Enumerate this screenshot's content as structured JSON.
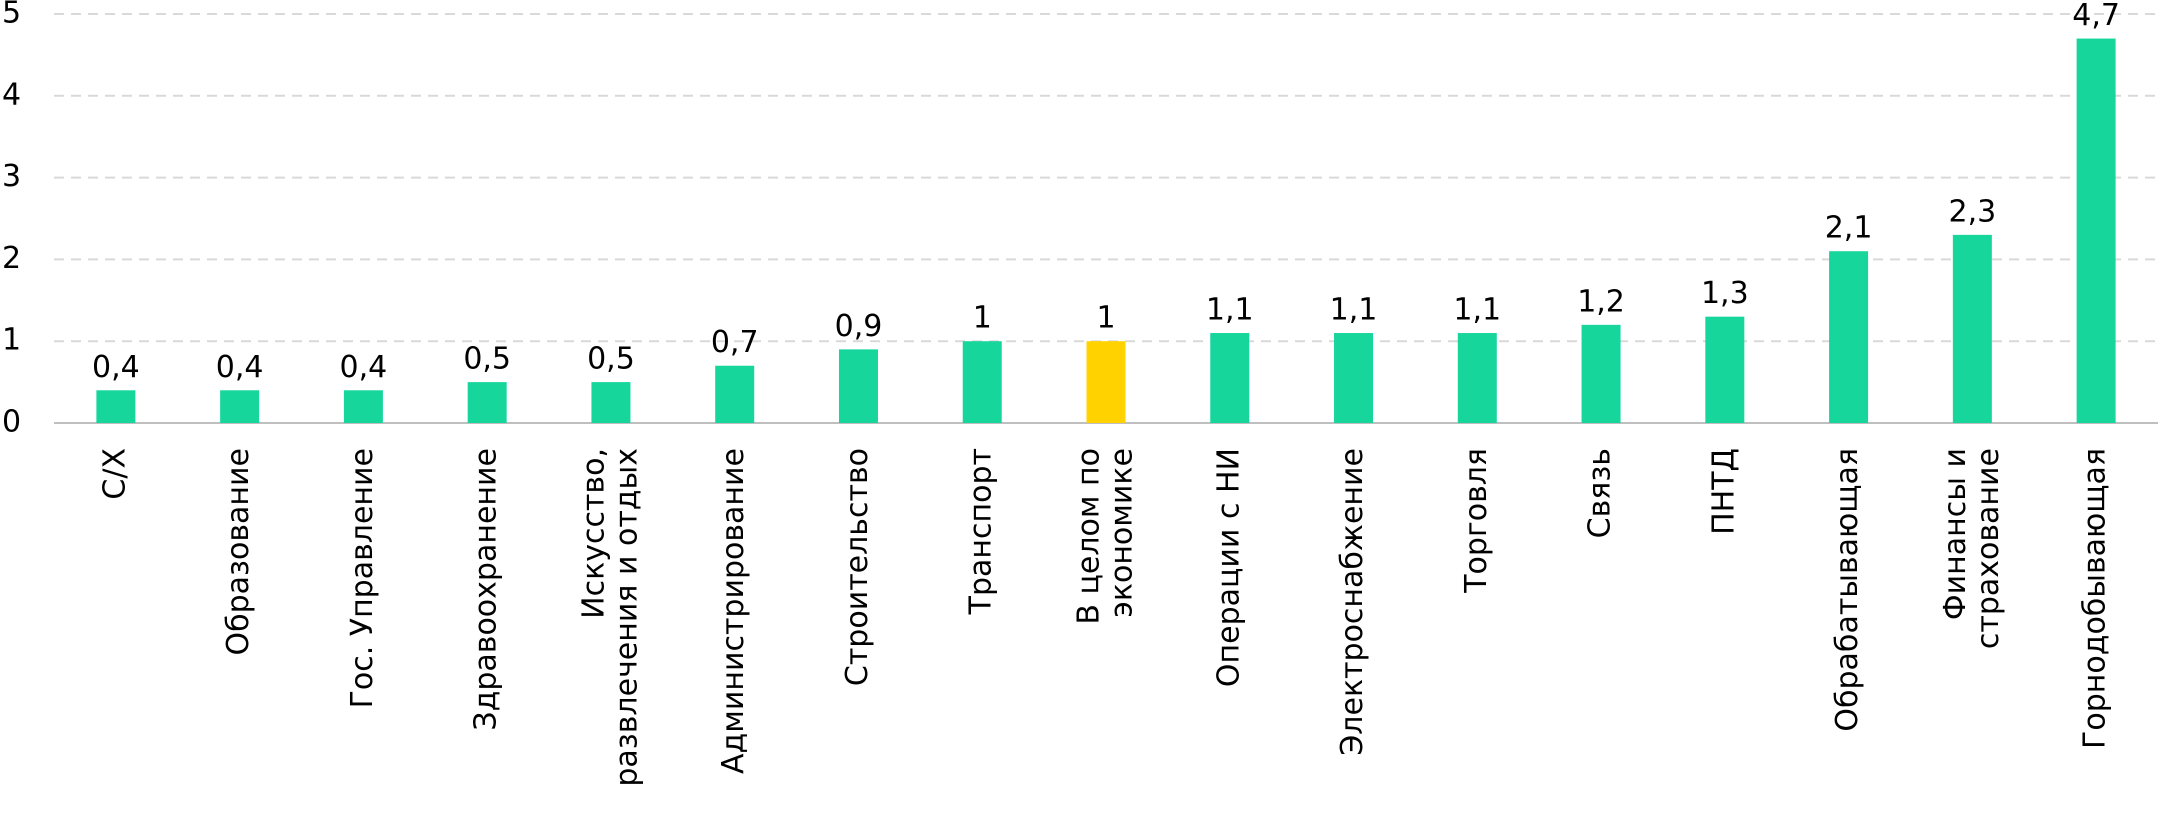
{
  "chart_data": {
    "type": "bar",
    "categories": [
      "С/Х",
      "Образование",
      "Гос. Управление",
      "Здравоохранение",
      "Искусство, развлечения и отдых",
      "Администрирование",
      "Строительство",
      "Транспорт",
      "В целом по экономике",
      "Операции с НИ",
      "Электроснабжение",
      "Торговля",
      "Связь",
      "ПНТД",
      "Обрабатывающая",
      "Финансы и страхование",
      "Горнодобывающая"
    ],
    "values": [
      0.4,
      0.4,
      0.4,
      0.5,
      0.5,
      0.7,
      0.9,
      1,
      1,
      1.1,
      1.1,
      1.1,
      1.2,
      1.3,
      2.1,
      2.3,
      4.7
    ],
    "value_labels": [
      "0,4",
      "0,4",
      "0,4",
      "0,5",
      "0,5",
      "0,7",
      "0,9",
      "1",
      "1",
      "1,1",
      "1,1",
      "1,1",
      "1,2",
      "1,3",
      "2,1",
      "2,3",
      "4,7"
    ],
    "colors": [
      "#17d69c",
      "#17d69c",
      "#17d69c",
      "#17d69c",
      "#17d69c",
      "#17d69c",
      "#17d69c",
      "#17d69c",
      "#ffd200",
      "#17d69c",
      "#17d69c",
      "#17d69c",
      "#17d69c",
      "#17d69c",
      "#17d69c",
      "#17d69c",
      "#17d69c"
    ],
    "ylim": [
      0,
      5
    ],
    "yticks": [
      0,
      1,
      2,
      3,
      4,
      5
    ],
    "grid": true
  }
}
